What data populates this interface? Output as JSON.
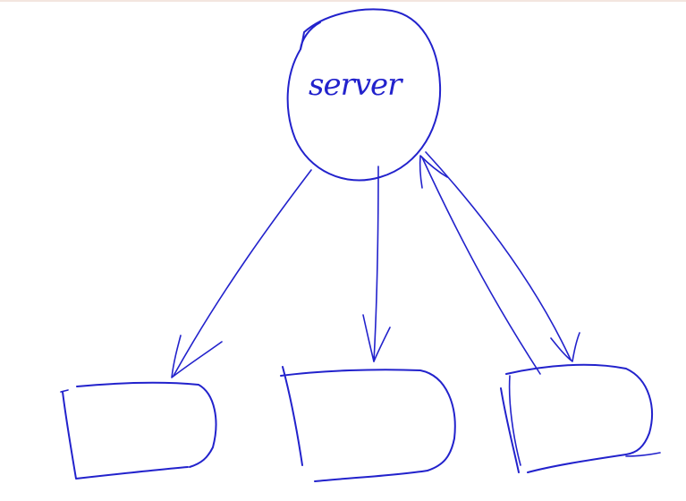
{
  "diagram": {
    "ink_color": "#2222cc",
    "server": {
      "label": "server"
    },
    "boxes": [
      {
        "id": "left-box",
        "label": ""
      },
      {
        "id": "middle-box",
        "label": ""
      },
      {
        "id": "right-box",
        "label": ""
      }
    ],
    "edges": [
      {
        "from": "server",
        "to": "left-box",
        "direction": "down"
      },
      {
        "from": "server",
        "to": "middle-box",
        "direction": "down"
      },
      {
        "from": "server",
        "to": "right-box",
        "direction": "down"
      },
      {
        "from": "right-box",
        "to": "server",
        "direction": "up"
      }
    ]
  }
}
